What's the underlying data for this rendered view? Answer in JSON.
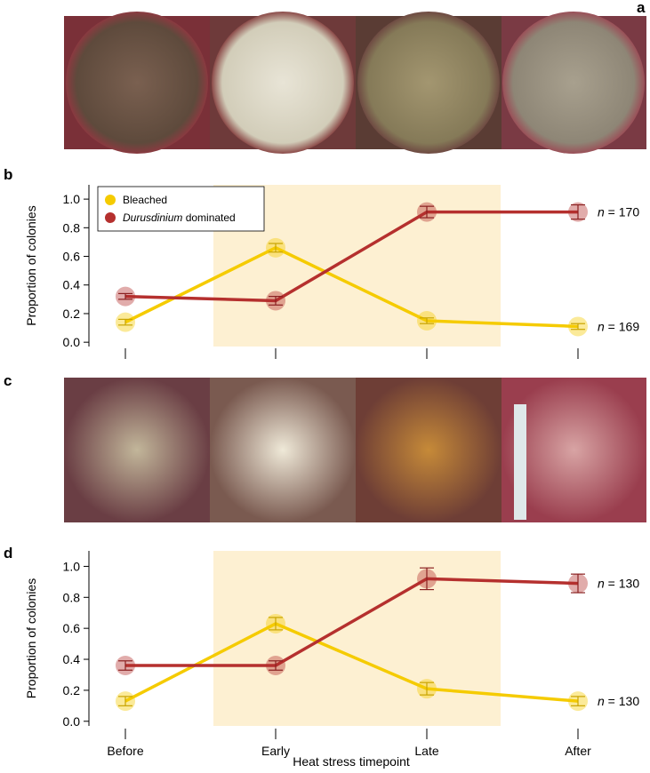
{
  "panel_labels": [
    "a",
    "b",
    "c",
    "d"
  ],
  "chart_data": [
    {
      "type": "line",
      "categories": [
        null,
        null,
        null,
        null
      ],
      "ylabel": "Proportion of colonies",
      "ylim": [
        -0.03,
        1.1
      ],
      "yticks": [
        {
          "value": 0,
          "label": "0.0"
        },
        0.2,
        0.4,
        0.6,
        0.8,
        {
          "value": 1,
          "label": "1.0"
        }
      ],
      "legend": "upper left",
      "series": [
        {
          "name": "Bleached",
          "color": "#f5cb00",
          "values": [
            0.14,
            0.66,
            0.15,
            0.11
          ],
          "errors": [
            0.02,
            0.03,
            0.02,
            0.02
          ],
          "annotation": "n = 169"
        },
        {
          "name": "Durusdinium dominated",
          "color": "#b5302e",
          "values": [
            0.32,
            0.29,
            0.91,
            0.91
          ],
          "errors": [
            0.02,
            0.03,
            0.04,
            0.05
          ],
          "annotation": "n = 170"
        }
      ]
    },
    {
      "type": "line",
      "categories": [
        "Before",
        "Early",
        "Late",
        "After"
      ],
      "xlabel": "Heat stress timepoint",
      "ylabel": "Proportion of colonies",
      "ylim": [
        -0.03,
        1.1
      ],
      "yticks": [
        {
          "value": 0,
          "label": "0.0"
        },
        0.2,
        0.4,
        0.6,
        0.8,
        {
          "value": 1,
          "label": "1.0"
        }
      ],
      "series": [
        {
          "name": "Bleached",
          "color": "#f5cb00",
          "values": [
            0.13,
            0.63,
            0.21,
            0.13
          ],
          "errors": [
            0.03,
            0.04,
            0.04,
            0.03
          ],
          "annotation": "n = 130"
        },
        {
          "name": "Durusdinium dominated",
          "color": "#b5302e",
          "values": [
            0.36,
            0.36,
            0.92,
            0.89
          ],
          "errors": [
            0.03,
            0.03,
            0.07,
            0.06
          ],
          "annotation": "n = 130"
        }
      ]
    }
  ]
}
